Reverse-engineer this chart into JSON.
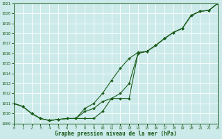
{
  "title": "Graphe pression niveau de la mer (hPa)",
  "bg_color": "#cceaea",
  "grid_color": "#b0d0d0",
  "line_color": "#1a5c1a",
  "xlim": [
    0,
    23
  ],
  "ylim": [
    1009,
    1021
  ],
  "xticks": [
    0,
    1,
    2,
    3,
    4,
    5,
    6,
    7,
    8,
    9,
    10,
    11,
    12,
    13,
    14,
    15,
    16,
    17,
    18,
    19,
    20,
    21,
    22,
    23
  ],
  "yticks": [
    1009,
    1010,
    1011,
    1012,
    1013,
    1014,
    1015,
    1016,
    1017,
    1018,
    1019,
    1020,
    1021
  ],
  "line1_x": [
    0,
    1,
    2,
    3,
    4,
    5,
    6,
    7,
    8,
    9,
    10,
    11,
    12,
    13,
    14,
    15,
    16,
    17,
    18,
    19,
    20,
    21,
    22,
    23
  ],
  "line1_y": [
    1011.0,
    1010.7,
    1010.0,
    1009.5,
    1009.3,
    1009.4,
    1009.5,
    1009.5,
    1010.5,
    1011.0,
    1012.0,
    1013.3,
    1014.5,
    1015.5,
    1016.1,
    1016.2,
    1016.8,
    1017.5,
    1018.1,
    1018.5,
    1019.8,
    1020.2,
    1020.3,
    1021.0
  ],
  "line2_x": [
    0,
    1,
    2,
    3,
    4,
    5,
    6,
    7,
    8,
    9,
    10,
    11,
    12,
    13,
    14,
    15,
    16,
    17,
    18,
    19,
    20,
    21,
    22,
    23
  ],
  "line2_y": [
    1011.0,
    1010.7,
    1010.0,
    1009.5,
    1009.3,
    1009.4,
    1009.5,
    1009.5,
    1010.2,
    1010.5,
    1011.2,
    1011.5,
    1011.5,
    1011.5,
    1016.0,
    1016.2,
    1016.8,
    1017.5,
    1018.1,
    1018.5,
    1019.8,
    1020.2,
    1020.3,
    1021.0
  ],
  "line3_x": [
    0,
    1,
    2,
    3,
    4,
    5,
    6,
    7,
    8,
    9,
    10,
    11,
    12,
    13,
    14,
    15,
    16,
    17,
    18,
    19,
    20,
    21,
    22,
    23
  ],
  "line3_y": [
    1011.0,
    1010.7,
    1010.0,
    1009.5,
    1009.3,
    1009.4,
    1009.5,
    1009.5,
    1009.5,
    1009.5,
    1010.2,
    1011.5,
    1012.0,
    1013.0,
    1016.0,
    1016.2,
    1016.8,
    1017.5,
    1018.1,
    1018.5,
    1019.8,
    1020.2,
    1020.3,
    1021.0
  ]
}
